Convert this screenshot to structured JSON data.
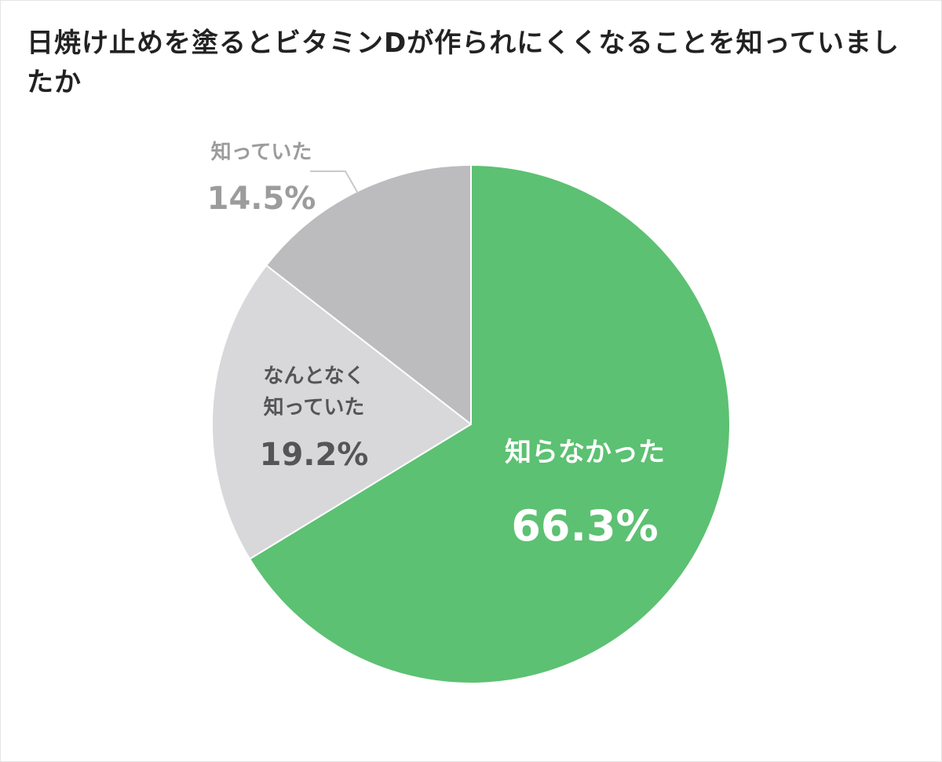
{
  "chart_data": {
    "type": "pie",
    "title": "日焼け止めを塗るとビタミンDが作られにくくなることを知っていましたか",
    "slices": [
      {
        "label": "知らなかった",
        "value": 66.3,
        "value_label": "66.3%",
        "color": "#5cc172",
        "label_color": "#ffffff"
      },
      {
        "label": "なんとなく\n知っていた",
        "label_lines": [
          "なんとなく",
          "知っていた"
        ],
        "value": 19.2,
        "value_label": "19.2%",
        "color": "#d8d7da",
        "label_color": "#555555"
      },
      {
        "label": "知っていた",
        "value": 14.5,
        "value_label": "14.5%",
        "color": "#bcbbbe",
        "label_color": "#9c9c9c"
      }
    ],
    "start": "12 o'clock",
    "direction": "clockwise",
    "legend": "none"
  }
}
